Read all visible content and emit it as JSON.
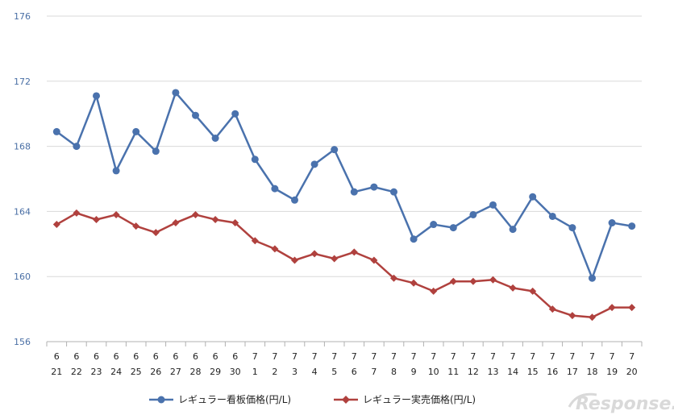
{
  "chart_data": {
    "type": "line",
    "title": "",
    "xlabel": "",
    "ylabel": "",
    "ylim": [
      156,
      176
    ],
    "yticks": [
      156,
      160,
      164,
      168,
      172,
      176
    ],
    "grid": true,
    "legend_position": "bottom",
    "x_months": [
      "6",
      "6",
      "6",
      "6",
      "6",
      "6",
      "6",
      "6",
      "6",
      "6",
      "7",
      "7",
      "7",
      "7",
      "7",
      "7",
      "7",
      "7",
      "7",
      "7",
      "7",
      "7",
      "7",
      "7",
      "7",
      "7",
      "7",
      "7",
      "7",
      "7"
    ],
    "x_days": [
      "21",
      "22",
      "23",
      "24",
      "25",
      "26",
      "27",
      "28",
      "29",
      "30",
      "1",
      "2",
      "3",
      "4",
      "5",
      "6",
      "7",
      "8",
      "9",
      "10",
      "11",
      "12",
      "13",
      "14",
      "15",
      "16",
      "17",
      "18",
      "19",
      "20"
    ],
    "series": [
      {
        "name": "レギュラー看板価格(円/L)",
        "color": "#4a72ad",
        "marker": "circle",
        "values": [
          168.9,
          168.0,
          171.1,
          166.5,
          168.9,
          167.7,
          171.3,
          169.9,
          168.5,
          170.0,
          167.2,
          165.4,
          164.7,
          166.9,
          167.8,
          165.2,
          165.5,
          165.2,
          162.3,
          163.2,
          163.0,
          163.8,
          164.4,
          162.9,
          164.9,
          163.7,
          163.0,
          159.9,
          163.3,
          163.1
        ]
      },
      {
        "name": "レギュラー実売価格(円/L)",
        "color": "#b0413e",
        "marker": "diamond",
        "values": [
          163.2,
          163.9,
          163.5,
          163.8,
          163.1,
          162.7,
          163.3,
          163.8,
          163.5,
          163.3,
          162.2,
          161.7,
          161.0,
          161.4,
          161.1,
          161.5,
          161.0,
          159.9,
          159.6,
          159.1,
          159.7,
          159.7,
          159.8,
          159.3,
          159.1,
          158.0,
          157.6,
          157.5,
          158.1,
          158.1
        ]
      }
    ]
  },
  "watermark": {
    "text": "Response."
  }
}
